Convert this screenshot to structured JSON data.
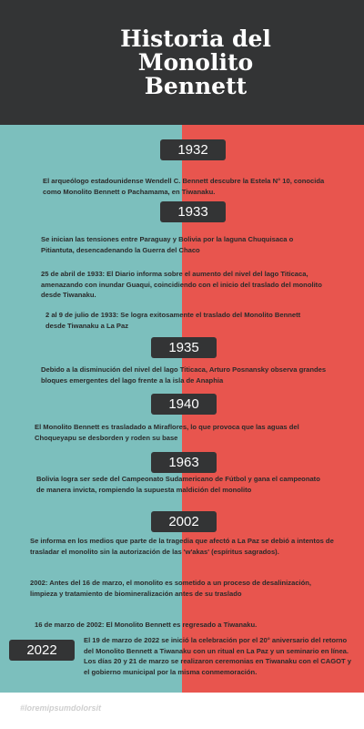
{
  "header": {
    "title": "Historia del Monolito Bennett"
  },
  "timeline": [
    {
      "year": "1932",
      "entries": [
        "El arqueólogo estadounidense Wendell C. Bennett descubre la Estela N° 10, conocida como Monolito Bennett o Pachamama, en Tiwanaku."
      ]
    },
    {
      "year": "1933",
      "entries": [
        "Se inician las tensiones entre Paraguay y Bolivia por la laguna Chuquisaca o Pitiantuta, desencadenando la Guerra del Chaco",
        "25 de abril de 1933: El Diario informa sobre el aumento del nivel del lago Titicaca, amenazando con inundar Guaqui, coincidiendo con el inicio del traslado del monolito desde Tiwanaku.",
        "2 al 9 de julio de 1933: Se logra exitosamente el traslado del Monolito Bennett desde Tiwanaku a La Paz"
      ]
    },
    {
      "year": "1935",
      "entries": [
        "Debido a la disminución del nivel del lago Titicaca, Arturo Posnansky observa grandes bloques emergentes del lago frente a la isla de Anaphia"
      ]
    },
    {
      "year": "1940",
      "entries": [
        "El Monolito Bennett es trasladado a Miraflores, lo que provoca que las aguas del Choqueyapu se desborden y roden su base"
      ]
    },
    {
      "year": "1963",
      "entries": [
        "Bolivia logra ser sede del Campeonato Sudamericano de Fútbol y gana el campeonato de manera invicta, rompiendo la supuesta maldición del monolito"
      ]
    },
    {
      "year": "2002",
      "entries": [
        "Se informa en los medios que parte de la tragedia que afectó a La Paz se debió a intentos de trasladar el monolito sin la autorización de las 'w'akas' (espíritus sagrados).",
        "2002: Antes del 16 de marzo, el monolito es sometido a un proceso de desalinización, limpieza y tratamiento de biomineralización antes de su traslado",
        "16 de marzo de 2002: El Monolito Bennett es regresado a Tiwanaku."
      ]
    },
    {
      "year": "2022",
      "entries": [
        "El 19 de marzo de 2022 se inició la celebración por el 20° aniversario del retorno del Monolito Bennett a Tiwanaku con un ritual en La Paz y un seminario en línea. Los días 20 y 21 de marzo se realizaron ceremonias en Tiwanaku con el CAGOT y el gobierno municipal por la misma conmemoración."
      ]
    }
  ],
  "footer": {
    "hashtag": "#loremipsumdolorsit"
  }
}
